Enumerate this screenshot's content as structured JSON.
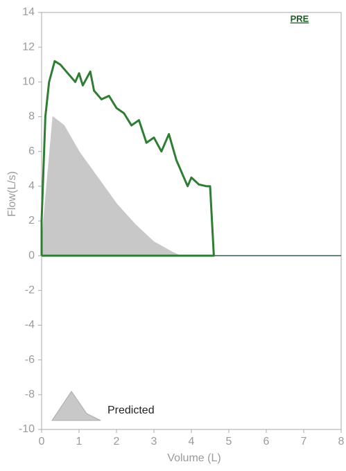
{
  "chart_data": {
    "type": "line",
    "annotation": "PRE",
    "x_label": "Volume (L)",
    "y_label": "Flow(L/s)",
    "xlim": [
      0,
      8
    ],
    "ylim": [
      -10,
      14
    ],
    "xticks": [
      0,
      1,
      2,
      3,
      4,
      5,
      6,
      7,
      8
    ],
    "yticks": [
      -10,
      -8,
      -6,
      -4,
      -2,
      0,
      2,
      4,
      6,
      8,
      10,
      12,
      14
    ],
    "legend": "lower left",
    "series": [
      {
        "name": "Predicted",
        "color": "#c8c8c8",
        "fill": true,
        "x": [
          0,
          0.05,
          0.3,
          0.6,
          1.0,
          1.5,
          2.0,
          2.5,
          3.0,
          3.5,
          3.7
        ],
        "values": [
          0,
          2,
          8,
          7.5,
          6,
          4.5,
          3,
          1.8,
          0.8,
          0.2,
          0
        ]
      },
      {
        "color": "#2e7d32",
        "fill": false,
        "x": [
          0,
          0,
          0.1,
          0.2,
          0.35,
          0.5,
          0.7,
          0.9,
          1.0,
          1.1,
          1.3,
          1.4,
          1.6,
          1.8,
          2.0,
          2.2,
          2.4,
          2.6,
          2.8,
          3.0,
          3.2,
          3.4,
          3.6,
          3.8,
          3.9,
          4.0,
          4.2,
          4.4,
          4.5,
          4.55,
          4.6,
          0
        ],
        "values": [
          0,
          2,
          8,
          10,
          11.2,
          11,
          10.5,
          10,
          10.5,
          9.8,
          10.6,
          9.5,
          9,
          9.2,
          8.5,
          8.2,
          7.5,
          7.8,
          6.5,
          6.8,
          6,
          7,
          5.5,
          4.5,
          4,
          4.5,
          4.1,
          4,
          4,
          2,
          0,
          0
        ]
      }
    ]
  }
}
